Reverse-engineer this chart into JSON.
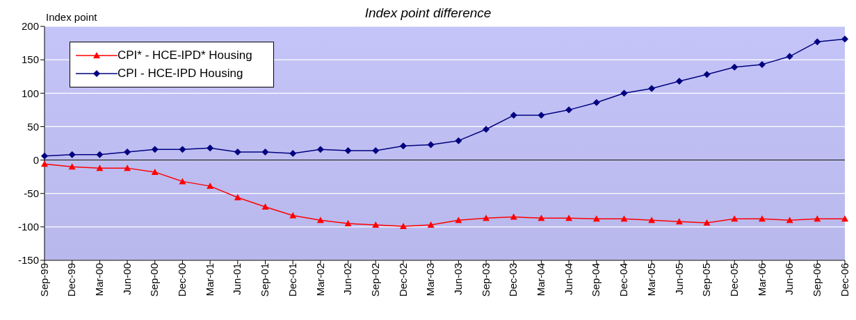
{
  "chart_data": {
    "type": "line",
    "title": "Index point difference",
    "ylabel": "Index point",
    "categories": [
      "Sep-99",
      "Dec-99",
      "Mar-00",
      "Jun-00",
      "Sep-00",
      "Dec-00",
      "Mar-01",
      "Jun-01",
      "Sep-01",
      "Dec-01",
      "Mar-02",
      "Jun-02",
      "Sep-02",
      "Dec-02",
      "Mar-03",
      "Jun-03",
      "Sep-03",
      "Dec-03",
      "Mar-04",
      "Jun-04",
      "Sep-04",
      "Dec-04",
      "Mar-05",
      "Jun-05",
      "Sep-05",
      "Dec-05",
      "Mar-06",
      "Jun-06",
      "Sep-06",
      "Dec-06"
    ],
    "series": [
      {
        "name": "CPI* - HCE-IPD* Housing",
        "color": "#ff0000",
        "marker": "triangle",
        "values": [
          -6,
          -10,
          -12,
          -12,
          -18,
          -32,
          -39,
          -56,
          -70,
          -83,
          -90,
          -95,
          -97,
          -99,
          -97,
          -90,
          -87,
          -85,
          -87,
          -87,
          -88,
          -88,
          -90,
          -92,
          -94,
          -88,
          -88,
          -90,
          -88,
          -88
        ]
      },
      {
        "name": "CPI - HCE-IPD Housing",
        "color": "#000080",
        "marker": "diamond",
        "values": [
          6,
          8,
          8,
          12,
          16,
          16,
          18,
          12,
          12,
          10,
          16,
          14,
          14,
          21,
          23,
          29,
          46,
          67,
          67,
          75,
          86,
          100,
          107,
          118,
          128,
          139,
          143,
          155,
          177,
          181
        ]
      }
    ],
    "ylim": [
      -150,
      200
    ],
    "yticks": [
      -150,
      -100,
      -50,
      0,
      50,
      100,
      150,
      200
    ],
    "grid": "y",
    "legend": "top left",
    "line_style": "solid"
  }
}
